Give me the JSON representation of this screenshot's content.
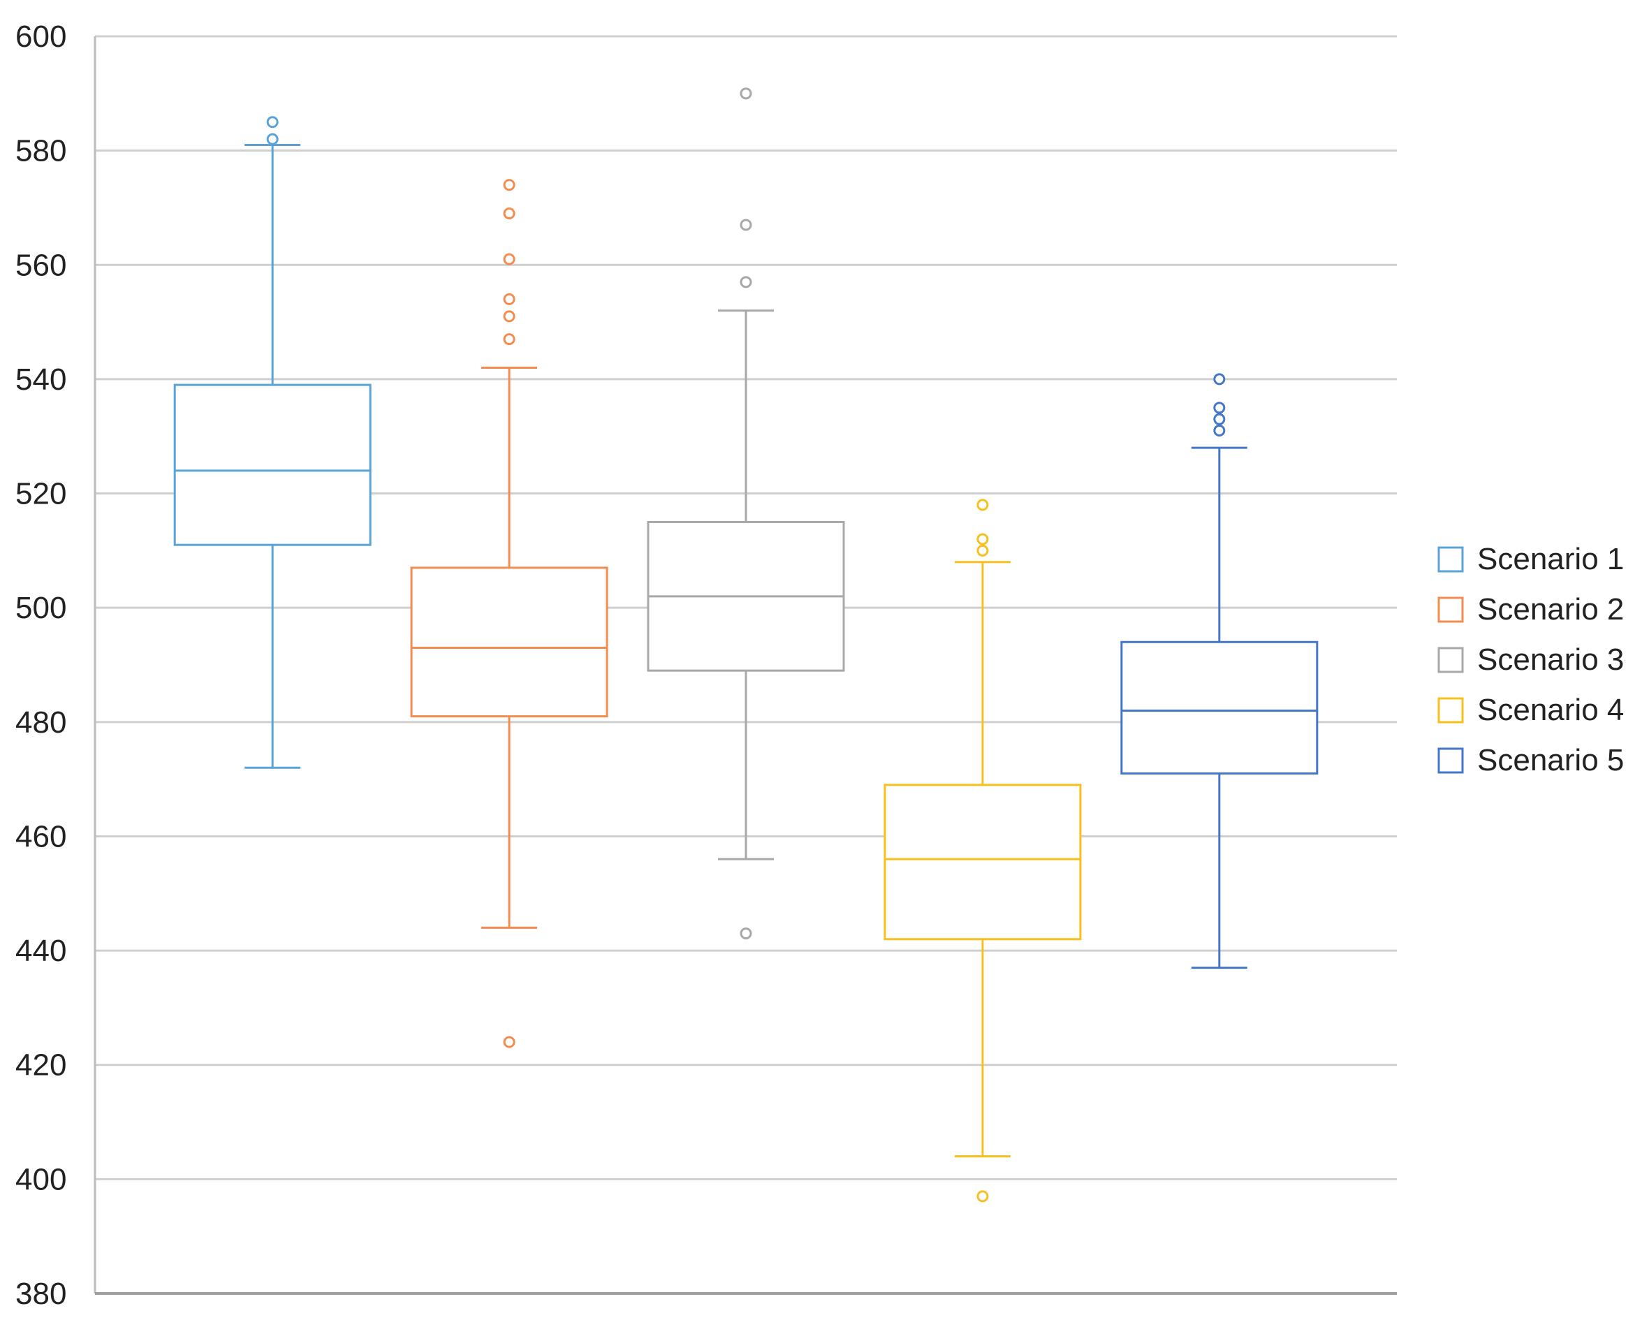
{
  "chart_data": {
    "type": "box",
    "title": "",
    "xlabel": "",
    "ylabel": "",
    "ylim": [
      380,
      600
    ],
    "yticks": [
      380,
      400,
      420,
      440,
      460,
      480,
      500,
      520,
      540,
      560,
      580,
      600
    ],
    "ytick_labels": [
      "380",
      "400",
      "420",
      "440",
      "460",
      "480",
      "500",
      "520",
      "540",
      "560",
      "580",
      "600"
    ],
    "grid": true,
    "legend_position": "right",
    "series": [
      {
        "name": "Scenario 1",
        "color": "#5BA3D6",
        "whisker_low": 472,
        "q1": 511,
        "median": 524,
        "q3": 539,
        "whisker_high": 581,
        "outliers": [
          582,
          585
        ]
      },
      {
        "name": "Scenario 2",
        "color": "#F28C50",
        "whisker_low": 444,
        "q1": 481,
        "median": 493,
        "q3": 507,
        "whisker_high": 542,
        "outliers": [
          424,
          547,
          551,
          554,
          561,
          569,
          574
        ]
      },
      {
        "name": "Scenario 3",
        "color": "#A8A8A8",
        "whisker_low": 456,
        "q1": 489,
        "median": 502,
        "q3": 515,
        "whisker_high": 552,
        "outliers": [
          443,
          557,
          567,
          590
        ]
      },
      {
        "name": "Scenario 4",
        "color": "#F7C01E",
        "whisker_low": 404,
        "q1": 442,
        "median": 456,
        "q3": 469,
        "whisker_high": 508,
        "outliers": [
          397,
          510,
          512,
          518
        ]
      },
      {
        "name": "Scenario 5",
        "color": "#4577C8",
        "whisker_low": 437,
        "q1": 471,
        "median": 482,
        "q3": 494,
        "whisker_high": 528,
        "outliers": [
          531,
          533,
          535,
          540
        ]
      }
    ]
  }
}
